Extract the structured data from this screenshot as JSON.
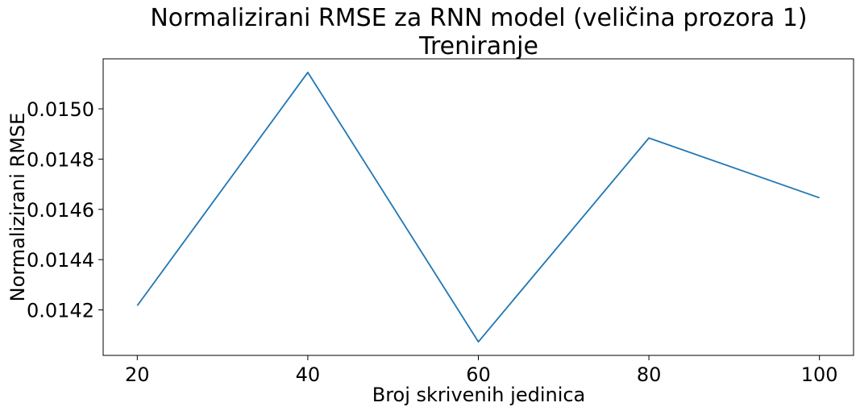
{
  "chart_data": {
    "type": "line",
    "title": "Normalizirani RMSE za RNN model (veličina prozora 1)",
    "subtitle": "Treniranje",
    "xlabel": "Broj skrivenih jedinica",
    "ylabel": "Normalizirani RMSE",
    "x": [
      20,
      40,
      60,
      80,
      100
    ],
    "series": [
      {
        "values": [
          0.014217,
          0.015145,
          0.014073,
          0.014884,
          0.014646
        ]
      }
    ],
    "x_ticks": [
      20,
      40,
      60,
      80,
      100
    ],
    "x_tick_labels": [
      "20",
      "40",
      "60",
      "80",
      "100"
    ],
    "y_ticks": [
      0.0142,
      0.0144,
      0.0146,
      0.0148,
      0.015
    ],
    "y_tick_labels": [
      "0.0142",
      "0.0144",
      "0.0146",
      "0.0148",
      "0.0150"
    ],
    "xlim": [
      16,
      104
    ],
    "ylim": [
      0.014019,
      0.015199
    ],
    "grid": false,
    "legend": "none",
    "line_color": "#1f77b4"
  }
}
